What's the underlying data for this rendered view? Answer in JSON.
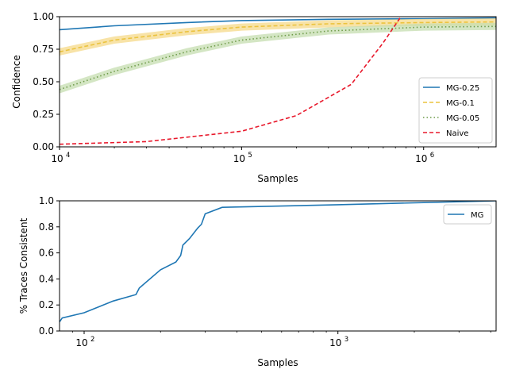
{
  "chart_data": [
    {
      "type": "line",
      "xlabel": "Samples",
      "ylabel": "Confidence",
      "xscale": "log",
      "xlim": [
        10000,
        2500000
      ],
      "ylim": [
        0,
        1
      ],
      "xticks": [
        {
          "value": 10000,
          "base": "10",
          "exp": "4"
        },
        {
          "value": 100000,
          "base": "10",
          "exp": "5"
        },
        {
          "value": 1000000,
          "base": "10",
          "exp": "6"
        }
      ],
      "yticks": [
        "0.00",
        "0.25",
        "0.50",
        "0.75",
        "1.00"
      ],
      "legend_position": "lower-right",
      "series": [
        {
          "name": "MG-0.25",
          "color": "#1f77b4",
          "style": "solid",
          "points": [
            [
              10000,
              0.9
            ],
            [
              20000,
              0.93
            ],
            [
              50000,
              0.955
            ],
            [
              100000,
              0.97
            ],
            [
              300000,
              0.98
            ],
            [
              1000000,
              0.985
            ],
            [
              2500000,
              0.99
            ]
          ]
        },
        {
          "name": "MG-0.1",
          "color": "#ebc33f",
          "style": "dashed",
          "band_color": "#f5d98a",
          "points": [
            [
              10000,
              0.73
            ],
            [
              20000,
              0.82
            ],
            [
              50000,
              0.885
            ],
            [
              100000,
              0.92
            ],
            [
              300000,
              0.945
            ],
            [
              1000000,
              0.955
            ],
            [
              2500000,
              0.96
            ]
          ]
        },
        {
          "name": "MG-0.05",
          "color": "#6f9b4a",
          "style": "dotted",
          "band_color": "#c5ddb0",
          "points": [
            [
              10000,
              0.44
            ],
            [
              20000,
              0.58
            ],
            [
              50000,
              0.73
            ],
            [
              100000,
              0.82
            ],
            [
              300000,
              0.89
            ],
            [
              1000000,
              0.92
            ],
            [
              2500000,
              0.925
            ]
          ]
        },
        {
          "name": "Naive",
          "color": "#e8192c",
          "style": "dashed",
          "points": [
            [
              10000,
              0.02
            ],
            [
              30000,
              0.04
            ],
            [
              100000,
              0.12
            ],
            [
              200000,
              0.24
            ],
            [
              400000,
              0.48
            ],
            [
              600000,
              0.8
            ],
            [
              750000,
              1.0
            ]
          ]
        }
      ]
    },
    {
      "type": "line",
      "xlabel": "Samples",
      "ylabel": "% Traces Consistent",
      "xscale": "log",
      "xlim": [
        80,
        4200
      ],
      "ylim": [
        0,
        1
      ],
      "xticks": [
        {
          "value": 100,
          "base": "10",
          "exp": "2"
        },
        {
          "value": 1000,
          "base": "10",
          "exp": "3"
        }
      ],
      "yticks": [
        "0.0",
        "0.2",
        "0.4",
        "0.6",
        "0.8",
        "1.0"
      ],
      "legend_position": "upper-right",
      "series": [
        {
          "name": "MG",
          "color": "#1f77b4",
          "style": "solid",
          "points": [
            [
              80,
              0.07
            ],
            [
              82,
              0.1
            ],
            [
              100,
              0.14
            ],
            [
              130,
              0.23
            ],
            [
              160,
              0.28
            ],
            [
              165,
              0.33
            ],
            [
              200,
              0.47
            ],
            [
              230,
              0.53
            ],
            [
              240,
              0.58
            ],
            [
              245,
              0.66
            ],
            [
              260,
              0.71
            ],
            [
              280,
              0.79
            ],
            [
              290,
              0.82
            ],
            [
              300,
              0.9
            ],
            [
              350,
              0.95
            ],
            [
              1000,
              0.97
            ],
            [
              4200,
              1.0
            ]
          ]
        }
      ]
    }
  ]
}
